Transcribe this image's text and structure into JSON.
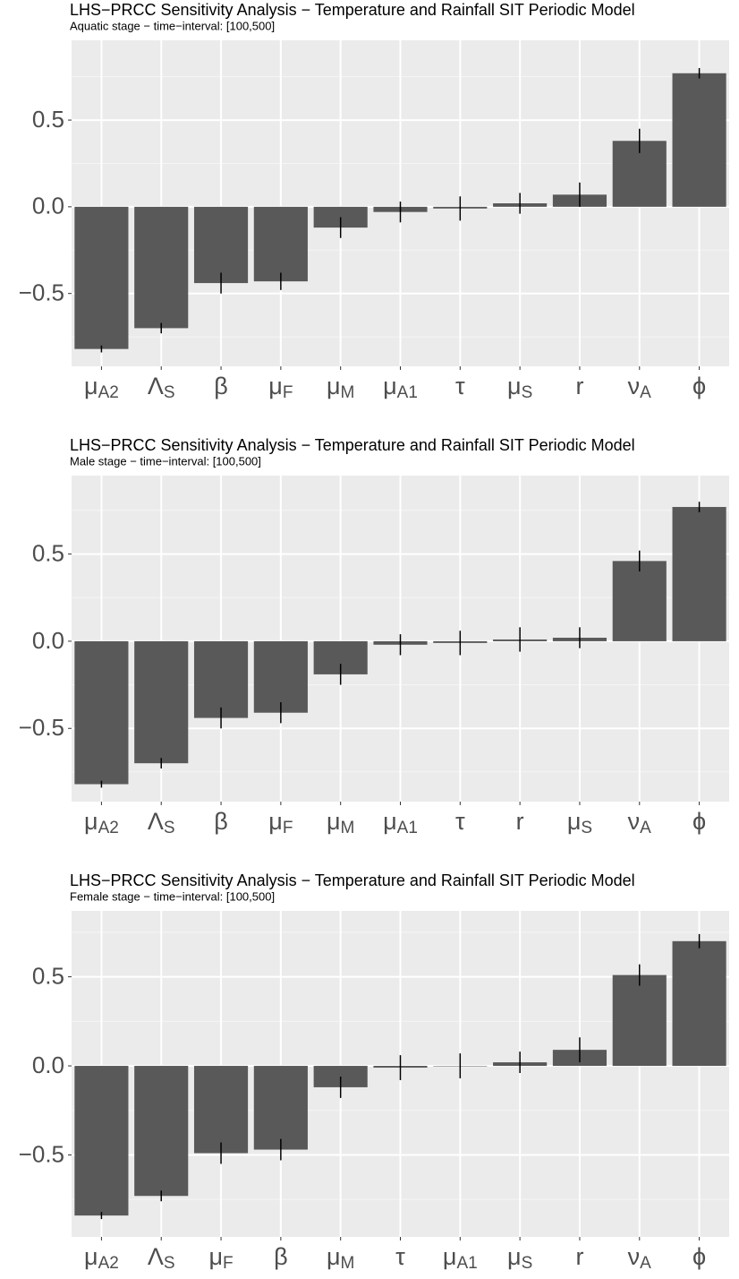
{
  "chart_data": [
    {
      "type": "bar",
      "title": "LHS−PRCC Sensitivity Analysis − Temperature and Rainfall SIT Periodic Model",
      "subtitle": "Aquatic stage − time−interval: [100,500]",
      "categories": [
        "μA2",
        "ΛS",
        "β",
        "μF",
        "μM",
        "μA1",
        "τ",
        "μS",
        "r",
        "νA",
        "ϕ"
      ],
      "values": [
        -0.82,
        -0.7,
        -0.44,
        -0.43,
        -0.12,
        -0.03,
        -0.01,
        0.02,
        0.07,
        0.38,
        0.77
      ],
      "errors": [
        0.02,
        0.03,
        0.06,
        0.05,
        0.06,
        0.06,
        0.07,
        0.06,
        0.07,
        0.07,
        0.03
      ],
      "color": "#595959",
      "errorbar_color": "#000000",
      "ylim": [
        -0.92,
        0.96
      ],
      "yticks": [
        {
          "value": -0.5,
          "label": "−0.5"
        },
        {
          "value": 0,
          "label": "0.0"
        },
        0.5
      ],
      "minor_yticks": [
        -0.75,
        -0.25,
        0.25,
        0.75
      ],
      "grid": true
    },
    {
      "type": "bar",
      "title": "LHS−PRCC Sensitivity Analysis − Temperature and Rainfall SIT Periodic Model",
      "subtitle": "Male stage − time−interval: [100,500]",
      "categories": [
        "μA2",
        "ΛS",
        "β",
        "μF",
        "μM",
        "μA1",
        "τ",
        "r",
        "μS",
        "νA",
        "ϕ"
      ],
      "values": [
        -0.82,
        -0.7,
        -0.44,
        -0.41,
        -0.19,
        -0.02,
        -0.01,
        0.01,
        0.02,
        0.46,
        0.77
      ],
      "errors": [
        0.02,
        0.03,
        0.06,
        0.06,
        0.06,
        0.06,
        0.07,
        0.07,
        0.06,
        0.06,
        0.03
      ],
      "color": "#595959",
      "errorbar_color": "#000000",
      "ylim": [
        -0.92,
        0.95
      ],
      "yticks": [
        {
          "value": -0.5,
          "label": "−0.5"
        },
        {
          "value": 0,
          "label": "0.0"
        },
        0.5
      ],
      "minor_yticks": [
        -0.75,
        -0.25,
        0.25,
        0.75
      ],
      "grid": true
    },
    {
      "type": "bar",
      "title": "LHS−PRCC Sensitivity Analysis − Temperature and Rainfall SIT Periodic Model",
      "subtitle": "Female stage − time−interval: [100,500]",
      "categories": [
        "μA2",
        "ΛS",
        "μF",
        "β",
        "μM",
        "τ",
        "μA1",
        "μS",
        "r",
        "νA",
        "ϕ"
      ],
      "values": [
        -0.84,
        -0.73,
        -0.49,
        -0.47,
        -0.12,
        -0.01,
        0.0,
        0.02,
        0.09,
        0.51,
        0.7
      ],
      "errors": [
        0.02,
        0.03,
        0.06,
        0.06,
        0.06,
        0.07,
        0.07,
        0.06,
        0.07,
        0.06,
        0.04
      ],
      "color": "#595959",
      "errorbar_color": "#000000",
      "ylim": [
        -0.96,
        0.87
      ],
      "yticks": [
        {
          "value": -0.5,
          "label": "−0.5"
        },
        {
          "value": 0,
          "label": "0.0"
        },
        0.5
      ],
      "minor_yticks": [
        -0.75,
        -0.25,
        0.25,
        0.75
      ],
      "grid": true
    }
  ]
}
